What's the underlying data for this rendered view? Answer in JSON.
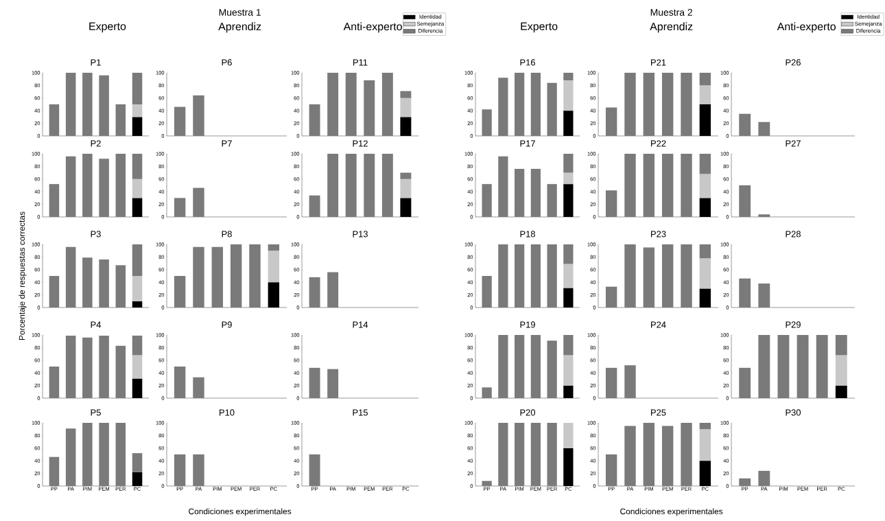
{
  "chart_data": [
    {
      "type": "bar",
      "stacked": true,
      "title": "Experto",
      "subtitle": "P1",
      "categories": [
        null,
        null,
        null,
        null,
        null,
        null
      ],
      "ylim": [
        0,
        100
      ],
      "yticks": [
        0,
        20,
        40,
        60,
        80,
        100
      ],
      "series": [
        {
          "color": "#000000",
          "values": [
            null,
            null,
            null,
            null,
            null,
            30
          ]
        },
        {
          "color": "#c8c8c8",
          "values": [
            null,
            null,
            null,
            null,
            null,
            20
          ]
        },
        {
          "color": "#7a7a7a",
          "values": [
            50,
            100,
            100,
            96,
            50,
            50
          ]
        }
      ]
    },
    {
      "type": "bar",
      "stacked": true,
      "title": "P2",
      "categories": [
        null,
        null,
        null,
        null,
        null,
        null
      ],
      "ylim": [
        0,
        100
      ],
      "yticks": [
        0,
        20,
        40,
        60,
        80,
        100
      ],
      "series": [
        {
          "color": "#000000",
          "values": [
            null,
            null,
            null,
            null,
            null,
            30
          ]
        },
        {
          "color": "#c8c8c8",
          "values": [
            null,
            null,
            null,
            null,
            null,
            30
          ]
        },
        {
          "color": "#7a7a7a",
          "values": [
            52,
            96,
            100,
            92,
            100,
            40
          ]
        }
      ]
    },
    {
      "type": "bar",
      "stacked": true,
      "title": "P3",
      "ylabel": "Porcentaje de respuestas correctas",
      "categories": [
        null,
        null,
        null,
        null,
        null,
        null
      ],
      "ylim": [
        0,
        100
      ],
      "yticks": [
        0,
        20,
        40,
        60,
        80,
        100
      ],
      "series": [
        {
          "color": "#000000",
          "values": [
            null,
            null,
            null,
            null,
            null,
            10
          ]
        },
        {
          "color": "#c8c8c8",
          "values": [
            null,
            null,
            null,
            null,
            null,
            40
          ]
        },
        {
          "color": "#7a7a7a",
          "values": [
            50,
            96,
            79,
            76,
            67,
            50
          ]
        }
      ]
    },
    {
      "type": "bar",
      "stacked": true,
      "title": "P4",
      "categories": [
        null,
        null,
        null,
        null,
        null,
        null
      ],
      "ylim": [
        0,
        100
      ],
      "yticks": [
        0,
        20,
        40,
        60,
        80,
        100
      ],
      "series": [
        {
          "color": "#000000",
          "values": [
            null,
            null,
            null,
            null,
            null,
            31
          ]
        },
        {
          "color": "#c8c8c8",
          "values": [
            null,
            null,
            null,
            null,
            null,
            37
          ]
        },
        {
          "color": "#7a7a7a",
          "values": [
            50,
            99,
            96,
            99,
            83,
            31
          ]
        }
      ]
    },
    {
      "type": "bar",
      "stacked": true,
      "title": "P5",
      "categories": [
        "PP",
        "PA",
        "PIM",
        "PEM",
        "PER",
        "PC"
      ],
      "ylim": [
        0,
        100
      ],
      "yticks": [
        0,
        20,
        40,
        60,
        80,
        100
      ],
      "series": [
        {
          "color": "#000000",
          "values": [
            null,
            null,
            null,
            null,
            null,
            22
          ]
        },
        {
          "color": "#c8c8c8",
          "values": [
            null,
            null,
            null,
            null,
            null,
            null
          ]
        },
        {
          "color": "#7a7a7a",
          "values": [
            46,
            91,
            100,
            100,
            100,
            30
          ]
        }
      ]
    },
    {
      "type": "bar",
      "stacked": true,
      "title": "Aprendiz",
      "subtitle": "P6",
      "annotations": [
        "Muestra 1"
      ],
      "categories": [
        null,
        null,
        null,
        null,
        null,
        null
      ],
      "ylim": [
        0,
        100
      ],
      "yticks": [
        0,
        20,
        40,
        60,
        80,
        100
      ],
      "series": [
        {
          "color": "#000000",
          "values": [
            null,
            null,
            null,
            null,
            null,
            null
          ]
        },
        {
          "color": "#c8c8c8",
          "values": [
            null,
            null,
            null,
            null,
            null,
            null
          ]
        },
        {
          "color": "#7a7a7a",
          "values": [
            46,
            64,
            null,
            null,
            null,
            null
          ]
        }
      ]
    },
    {
      "type": "bar",
      "stacked": true,
      "title": "P7",
      "categories": [
        null,
        null,
        null,
        null,
        null,
        null
      ],
      "ylim": [
        0,
        100
      ],
      "yticks": [
        0,
        20,
        40,
        60,
        80,
        100
      ],
      "series": [
        {
          "color": "#000000",
          "values": [
            null,
            null,
            null,
            null,
            null,
            null
          ]
        },
        {
          "color": "#c8c8c8",
          "values": [
            null,
            null,
            null,
            null,
            null,
            null
          ]
        },
        {
          "color": "#7a7a7a",
          "values": [
            30,
            46,
            null,
            null,
            null,
            null
          ]
        }
      ]
    },
    {
      "type": "bar",
      "stacked": true,
      "title": "P8",
      "categories": [
        null,
        null,
        null,
        null,
        null,
        null
      ],
      "ylim": [
        0,
        100
      ],
      "yticks": [
        0,
        20,
        40,
        60,
        80,
        100
      ],
      "series": [
        {
          "color": "#000000",
          "values": [
            null,
            null,
            null,
            null,
            null,
            40
          ]
        },
        {
          "color": "#c8c8c8",
          "values": [
            null,
            null,
            null,
            null,
            null,
            50
          ]
        },
        {
          "color": "#7a7a7a",
          "values": [
            50,
            96,
            96,
            100,
            100,
            10
          ]
        }
      ]
    },
    {
      "type": "bar",
      "stacked": true,
      "title": "P9",
      "categories": [
        null,
        null,
        null,
        null,
        null,
        null
      ],
      "ylim": [
        0,
        100
      ],
      "yticks": [
        0,
        20,
        40,
        60,
        80,
        100
      ],
      "series": [
        {
          "color": "#000000",
          "values": [
            null,
            null,
            null,
            null,
            null,
            null
          ]
        },
        {
          "color": "#c8c8c8",
          "values": [
            null,
            null,
            null,
            null,
            null,
            null
          ]
        },
        {
          "color": "#7a7a7a",
          "values": [
            50,
            33,
            null,
            null,
            null,
            null
          ]
        }
      ]
    },
    {
      "type": "bar",
      "stacked": true,
      "title": "P10",
      "xlabel": "Condiciones experimentales",
      "categories": [
        "PP",
        "PA",
        "PIM",
        "PEM",
        "PER",
        "PC"
      ],
      "ylim": [
        0,
        100
      ],
      "yticks": [
        0,
        20,
        40,
        60,
        80,
        100
      ],
      "series": [
        {
          "color": "#000000",
          "values": [
            null,
            null,
            null,
            null,
            null,
            null
          ]
        },
        {
          "color": "#c8c8c8",
          "values": [
            null,
            null,
            null,
            null,
            null,
            null
          ]
        },
        {
          "color": "#7a7a7a",
          "values": [
            50,
            50,
            null,
            null,
            null,
            null
          ]
        }
      ]
    },
    {
      "type": "bar",
      "stacked": true,
      "title": "Anti-experto",
      "subtitle": "P11",
      "legend": "top right",
      "categories": [
        null,
        null,
        null,
        null,
        null,
        null
      ],
      "ylim": [
        0,
        100
      ],
      "yticks": [
        0,
        20,
        40,
        60,
        80,
        100
      ],
      "series": [
        {
          "name": "Identidad",
          "color": "#000000",
          "values": [
            null,
            null,
            null,
            null,
            null,
            30
          ]
        },
        {
          "name": "Semejanza",
          "color": "#c8c8c8",
          "values": [
            null,
            null,
            null,
            null,
            null,
            30
          ]
        },
        {
          "name": "Diferencia",
          "color": "#7a7a7a",
          "values": [
            50,
            100,
            100,
            88,
            100,
            11
          ]
        }
      ]
    },
    {
      "type": "bar",
      "stacked": true,
      "title": "P12",
      "categories": [
        null,
        null,
        null,
        null,
        null,
        null
      ],
      "ylim": [
        0,
        100
      ],
      "yticks": [
        0,
        20,
        40,
        60,
        80,
        100
      ],
      "series": [
        {
          "color": "#000000",
          "values": [
            null,
            null,
            null,
            null,
            null,
            30
          ]
        },
        {
          "color": "#c8c8c8",
          "values": [
            null,
            null,
            null,
            null,
            null,
            30
          ]
        },
        {
          "color": "#7a7a7a",
          "values": [
            34,
            100,
            100,
            100,
            100,
            10
          ]
        }
      ]
    },
    {
      "type": "bar",
      "stacked": true,
      "title": "P13",
      "categories": [
        null,
        null,
        null,
        null,
        null,
        null
      ],
      "ylim": [
        0,
        100
      ],
      "yticks": [
        0,
        20,
        40,
        60,
        80,
        100
      ],
      "series": [
        {
          "color": "#000000",
          "values": [
            null,
            null,
            null,
            null,
            null,
            null
          ]
        },
        {
          "color": "#c8c8c8",
          "values": [
            null,
            null,
            null,
            null,
            null,
            null
          ]
        },
        {
          "color": "#7a7a7a",
          "values": [
            48,
            56,
            null,
            null,
            null,
            null
          ]
        }
      ]
    },
    {
      "type": "bar",
      "stacked": true,
      "title": "P14",
      "categories": [
        null,
        null,
        null,
        null,
        null,
        null
      ],
      "ylim": [
        0,
        100
      ],
      "yticks": [
        0,
        20,
        40,
        60,
        80,
        100
      ],
      "series": [
        {
          "color": "#000000",
          "values": [
            null,
            null,
            null,
            null,
            null,
            null
          ]
        },
        {
          "color": "#c8c8c8",
          "values": [
            null,
            null,
            null,
            null,
            null,
            null
          ]
        },
        {
          "color": "#7a7a7a",
          "values": [
            48,
            46,
            null,
            null,
            null,
            null
          ]
        }
      ]
    },
    {
      "type": "bar",
      "stacked": true,
      "title": "P15",
      "categories": [
        "PP",
        "PA",
        "PIM",
        "PEM",
        "PER",
        "PC"
      ],
      "ylim": [
        0,
        100
      ],
      "yticks": [
        0,
        20,
        40,
        60,
        80,
        100
      ],
      "series": [
        {
          "color": "#000000",
          "values": [
            null,
            null,
            null,
            null,
            null,
            null
          ]
        },
        {
          "color": "#c8c8c8",
          "values": [
            null,
            null,
            null,
            null,
            null,
            null
          ]
        },
        {
          "color": "#7a7a7a",
          "values": [
            50,
            null,
            null,
            null,
            null,
            null
          ]
        }
      ]
    },
    {
      "type": "bar",
      "stacked": true,
      "title": "Experto",
      "subtitle": "P16",
      "categories": [
        null,
        null,
        null,
        null,
        null,
        null
      ],
      "ylim": [
        0,
        100
      ],
      "yticks": [
        0,
        20,
        40,
        60,
        80,
        100
      ],
      "series": [
        {
          "color": "#000000",
          "values": [
            null,
            null,
            null,
            null,
            null,
            40
          ]
        },
        {
          "color": "#c8c8c8",
          "values": [
            null,
            null,
            null,
            null,
            null,
            48
          ]
        },
        {
          "color": "#7a7a7a",
          "values": [
            42,
            92,
            100,
            100,
            84,
            12
          ]
        }
      ]
    },
    {
      "type": "bar",
      "stacked": true,
      "title": "P17",
      "categories": [
        null,
        null,
        null,
        null,
        null,
        null
      ],
      "ylim": [
        0,
        100
      ],
      "yticks": [
        0,
        20,
        40,
        60,
        80,
        100
      ],
      "series": [
        {
          "color": "#000000",
          "values": [
            null,
            null,
            null,
            null,
            null,
            52
          ]
        },
        {
          "color": "#c8c8c8",
          "values": [
            null,
            null,
            null,
            null,
            null,
            18
          ]
        },
        {
          "color": "#7a7a7a",
          "values": [
            52,
            96,
            76,
            76,
            52,
            30
          ]
        }
      ]
    },
    {
      "type": "bar",
      "stacked": true,
      "title": "P18",
      "categories": [
        null,
        null,
        null,
        null,
        null,
        null
      ],
      "ylim": [
        0,
        100
      ],
      "yticks": [
        0,
        20,
        40,
        60,
        80,
        100
      ],
      "series": [
        {
          "color": "#000000",
          "values": [
            null,
            null,
            null,
            null,
            null,
            31
          ]
        },
        {
          "color": "#c8c8c8",
          "values": [
            null,
            null,
            null,
            null,
            null,
            38
          ]
        },
        {
          "color": "#7a7a7a",
          "values": [
            50,
            100,
            100,
            100,
            100,
            31
          ]
        }
      ]
    },
    {
      "type": "bar",
      "stacked": true,
      "title": "P19",
      "categories": [
        null,
        null,
        null,
        null,
        null,
        null
      ],
      "ylim": [
        0,
        100
      ],
      "yticks": [
        0,
        20,
        40,
        60,
        80,
        100
      ],
      "series": [
        {
          "color": "#000000",
          "values": [
            null,
            null,
            null,
            null,
            null,
            20
          ]
        },
        {
          "color": "#c8c8c8",
          "values": [
            null,
            null,
            null,
            null,
            null,
            48
          ]
        },
        {
          "color": "#7a7a7a",
          "values": [
            17,
            100,
            100,
            100,
            91,
            32
          ]
        }
      ]
    },
    {
      "type": "bar",
      "stacked": true,
      "title": "P20",
      "categories": [
        "PP",
        "PA",
        "PIM",
        "PEM",
        "PER",
        "PC"
      ],
      "ylim": [
        0,
        100
      ],
      "yticks": [
        0,
        20,
        40,
        60,
        80,
        100
      ],
      "series": [
        {
          "color": "#000000",
          "values": [
            null,
            null,
            null,
            null,
            null,
            60
          ]
        },
        {
          "color": "#c8c8c8",
          "values": [
            null,
            null,
            null,
            null,
            null,
            40
          ]
        },
        {
          "color": "#7a7a7a",
          "values": [
            8,
            100,
            100,
            100,
            100,
            null
          ]
        }
      ]
    },
    {
      "type": "bar",
      "stacked": true,
      "title": "Aprendiz",
      "subtitle": "P21",
      "annotations": [
        "Muestra 2"
      ],
      "categories": [
        null,
        null,
        null,
        null,
        null,
        null
      ],
      "ylim": [
        0,
        100
      ],
      "yticks": [
        0,
        20,
        40,
        60,
        80,
        100
      ],
      "series": [
        {
          "color": "#000000",
          "values": [
            null,
            null,
            null,
            null,
            null,
            50
          ]
        },
        {
          "color": "#c8c8c8",
          "values": [
            null,
            null,
            null,
            null,
            null,
            30
          ]
        },
        {
          "color": "#7a7a7a",
          "values": [
            45,
            100,
            100,
            100,
            100,
            20
          ]
        }
      ]
    },
    {
      "type": "bar",
      "stacked": true,
      "title": "P22",
      "categories": [
        null,
        null,
        null,
        null,
        null,
        null
      ],
      "ylim": [
        0,
        100
      ],
      "yticks": [
        0,
        20,
        40,
        60,
        80,
        100
      ],
      "series": [
        {
          "color": "#000000",
          "values": [
            null,
            null,
            null,
            null,
            null,
            30
          ]
        },
        {
          "color": "#c8c8c8",
          "values": [
            null,
            null,
            null,
            null,
            null,
            38
          ]
        },
        {
          "color": "#7a7a7a",
          "values": [
            42,
            100,
            100,
            100,
            100,
            32
          ]
        }
      ]
    },
    {
      "type": "bar",
      "stacked": true,
      "title": "P23",
      "categories": [
        null,
        null,
        null,
        null,
        null,
        null
      ],
      "ylim": [
        0,
        100
      ],
      "yticks": [
        0,
        20,
        40,
        60,
        80,
        100
      ],
      "series": [
        {
          "color": "#000000",
          "values": [
            null,
            null,
            null,
            null,
            null,
            30
          ]
        },
        {
          "color": "#c8c8c8",
          "values": [
            null,
            null,
            null,
            null,
            null,
            48
          ]
        },
        {
          "color": "#7a7a7a",
          "values": [
            33,
            100,
            95,
            100,
            100,
            22
          ]
        }
      ]
    },
    {
      "type": "bar",
      "stacked": true,
      "title": "P24",
      "categories": [
        null,
        null,
        null,
        null,
        null,
        null
      ],
      "ylim": [
        0,
        100
      ],
      "yticks": [
        0,
        20,
        40,
        60,
        80,
        100
      ],
      "series": [
        {
          "color": "#000000",
          "values": [
            null,
            null,
            null,
            null,
            null,
            null
          ]
        },
        {
          "color": "#c8c8c8",
          "values": [
            null,
            null,
            null,
            null,
            null,
            null
          ]
        },
        {
          "color": "#7a7a7a",
          "values": [
            48,
            52,
            null,
            null,
            null,
            null
          ]
        }
      ]
    },
    {
      "type": "bar",
      "stacked": true,
      "title": "P25",
      "xlabel": "Condiciones experimentales",
      "categories": [
        "PP",
        "PA",
        "PIM",
        "PEM",
        "PER",
        "PC"
      ],
      "ylim": [
        0,
        100
      ],
      "yticks": [
        0,
        20,
        40,
        60,
        80,
        100
      ],
      "series": [
        {
          "color": "#000000",
          "values": [
            null,
            null,
            null,
            null,
            null,
            40
          ]
        },
        {
          "color": "#c8c8c8",
          "values": [
            null,
            null,
            null,
            null,
            null,
            50
          ]
        },
        {
          "color": "#7a7a7a",
          "values": [
            50,
            95,
            100,
            95,
            100,
            10
          ]
        }
      ]
    },
    {
      "type": "bar",
      "stacked": true,
      "title": "Anti-experto",
      "subtitle": "P26",
      "legend": "top right",
      "categories": [
        null,
        null,
        null,
        null,
        null,
        null
      ],
      "ylim": [
        0,
        100
      ],
      "yticks": [
        0,
        20,
        40,
        60,
        80,
        100
      ],
      "series": [
        {
          "name": "Identidad",
          "color": "#000000",
          "values": [
            null,
            null,
            null,
            null,
            null,
            null
          ]
        },
        {
          "name": "Semejanza",
          "color": "#c8c8c8",
          "values": [
            null,
            null,
            null,
            null,
            null,
            null
          ]
        },
        {
          "name": "Diferencia",
          "color": "#7a7a7a",
          "values": [
            35,
            22,
            null,
            null,
            null,
            null
          ]
        }
      ]
    },
    {
      "type": "bar",
      "stacked": true,
      "title": "P27",
      "categories": [
        null,
        null,
        null,
        null,
        null,
        null
      ],
      "ylim": [
        0,
        100
      ],
      "yticks": [
        0,
        20,
        40,
        60,
        80,
        100
      ],
      "series": [
        {
          "color": "#000000",
          "values": [
            null,
            null,
            null,
            null,
            null,
            null
          ]
        },
        {
          "color": "#c8c8c8",
          "values": [
            null,
            null,
            null,
            null,
            null,
            null
          ]
        },
        {
          "color": "#7a7a7a",
          "values": [
            50,
            4,
            null,
            null,
            null,
            null
          ]
        }
      ]
    },
    {
      "type": "bar",
      "stacked": true,
      "title": "P28",
      "categories": [
        null,
        null,
        null,
        null,
        null,
        null
      ],
      "ylim": [
        0,
        100
      ],
      "yticks": [
        0,
        20,
        40,
        60,
        80,
        100
      ],
      "series": [
        {
          "color": "#000000",
          "values": [
            null,
            null,
            null,
            null,
            null,
            null
          ]
        },
        {
          "color": "#c8c8c8",
          "values": [
            null,
            null,
            null,
            null,
            null,
            null
          ]
        },
        {
          "color": "#7a7a7a",
          "values": [
            46,
            38,
            null,
            null,
            null,
            null
          ]
        }
      ]
    },
    {
      "type": "bar",
      "stacked": true,
      "title": "P29",
      "categories": [
        null,
        null,
        null,
        null,
        null,
        null
      ],
      "ylim": [
        0,
        100
      ],
      "yticks": [
        0,
        20,
        40,
        60,
        80,
        100
      ],
      "series": [
        {
          "color": "#000000",
          "values": [
            null,
            null,
            null,
            null,
            null,
            20
          ]
        },
        {
          "color": "#c8c8c8",
          "values": [
            null,
            null,
            null,
            null,
            null,
            48
          ]
        },
        {
          "color": "#7a7a7a",
          "values": [
            48,
            100,
            100,
            100,
            100,
            32
          ]
        }
      ]
    },
    {
      "type": "bar",
      "stacked": true,
      "title": "P30",
      "categories": [
        "PP",
        "PA",
        "PIM",
        "PEM",
        "PER",
        "PC"
      ],
      "ylim": [
        0,
        100
      ],
      "yticks": [
        0,
        20,
        40,
        60,
        80,
        100
      ],
      "series": [
        {
          "color": "#000000",
          "values": [
            null,
            null,
            null,
            null,
            null,
            null
          ]
        },
        {
          "color": "#c8c8c8",
          "values": [
            null,
            null,
            null,
            null,
            null,
            null
          ]
        },
        {
          "color": "#7a7a7a",
          "values": [
            12,
            24,
            null,
            null,
            null,
            null
          ]
        }
      ]
    }
  ]
}
